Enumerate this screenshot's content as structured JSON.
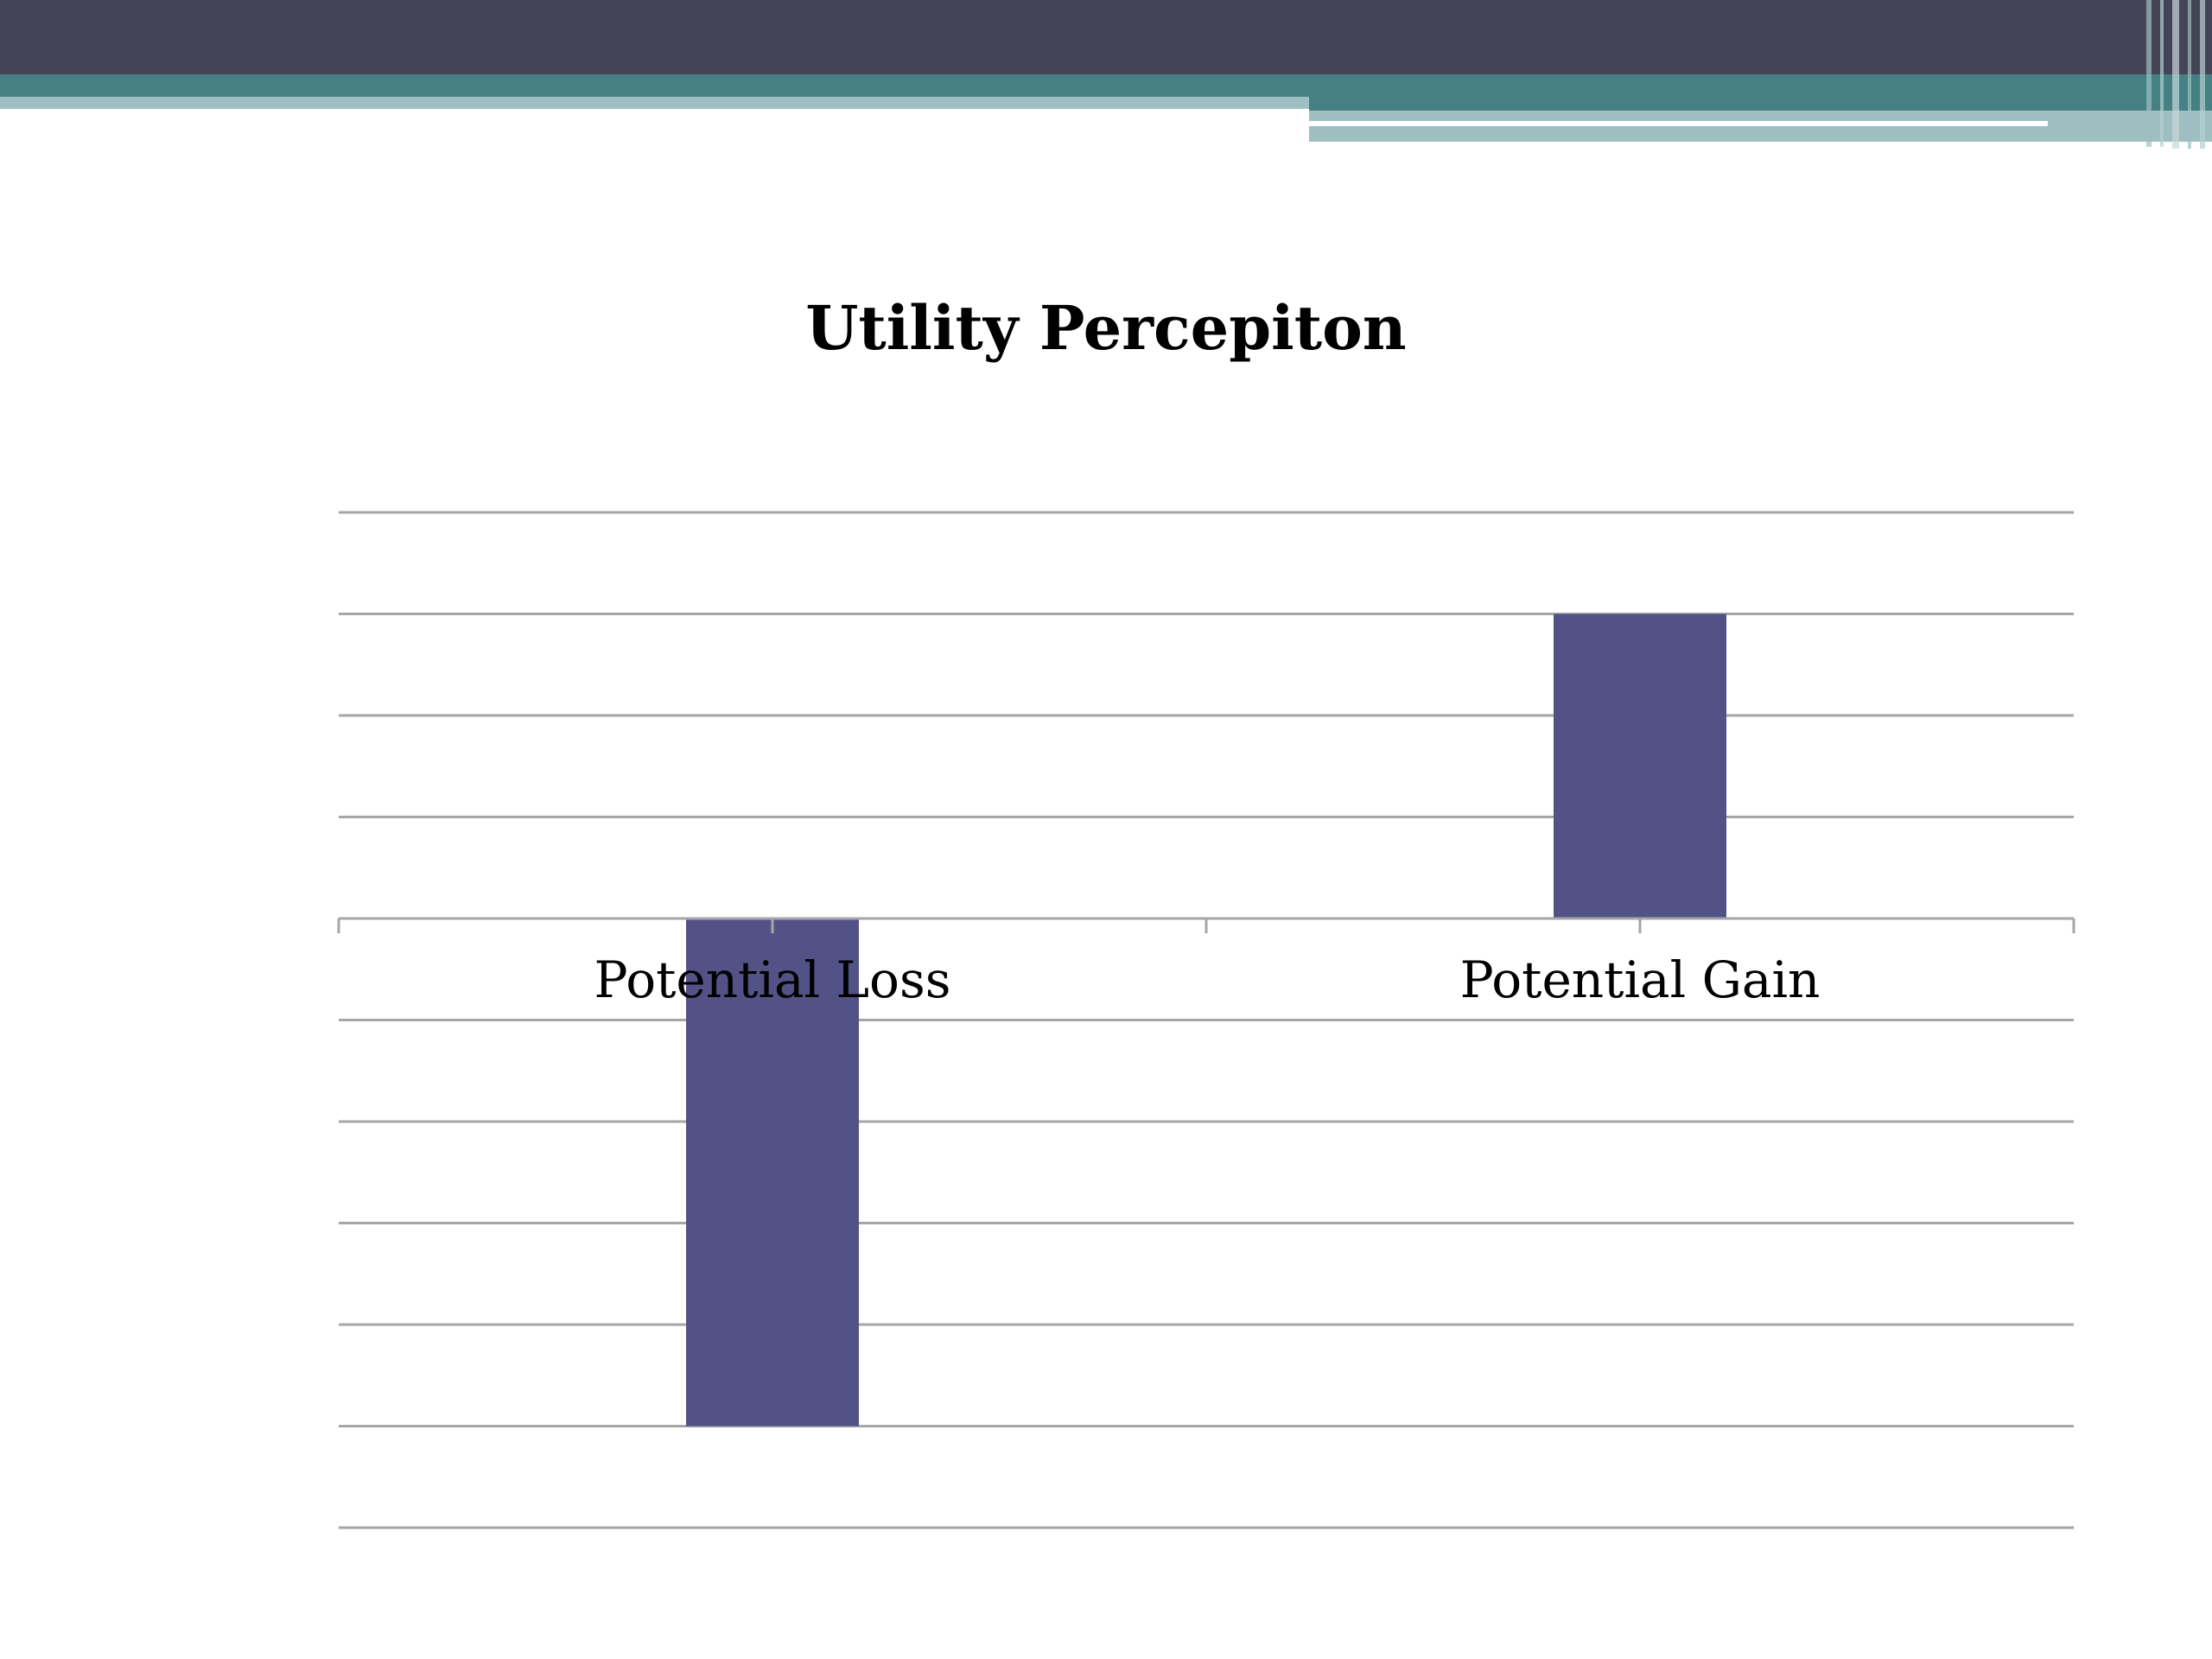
{
  "theme": {
    "header_dark": "#434456",
    "header_teal": "#458084",
    "header_light": "#9ebfc2",
    "bar_color": "#525287",
    "grid_color": "#a6a6a6"
  },
  "chart_data": {
    "type": "bar",
    "title": "Utility Percepiton",
    "categories": [
      "Potential Loss",
      "Potential Gain"
    ],
    "series": [
      {
        "values": [
          -5,
          3
        ]
      }
    ],
    "ylim": [
      -6,
      4
    ],
    "ytick_step": 1,
    "grid": true,
    "legend": "none",
    "xlabel": "",
    "ylabel": ""
  }
}
